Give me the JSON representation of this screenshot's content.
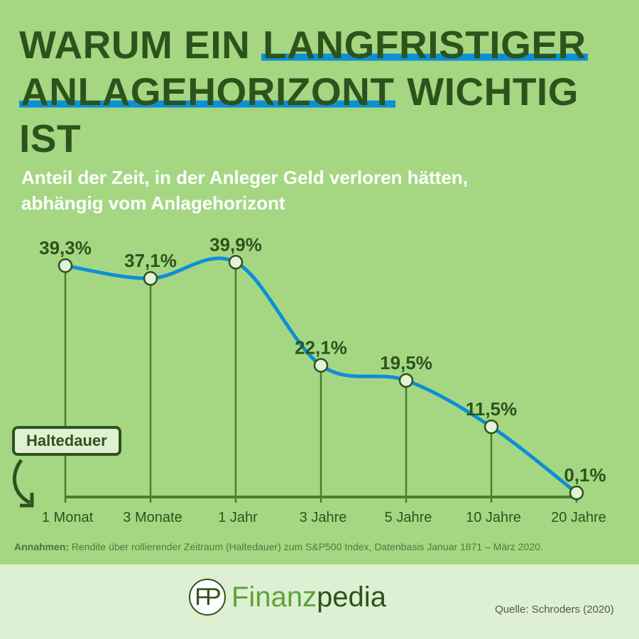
{
  "header": {
    "title_part1": "WARUM EIN ",
    "title_hl1": "LANGFRISTIGER",
    "title_hl2": "ANLAGEHORIZONT",
    "title_part2": " WICHTIG IST",
    "subtitle_line1": "Anteil der Zeit, in der Anleger Geld verloren hätten,",
    "subtitle_line2": "abhängig vom Anlagehorizont"
  },
  "chart_data": {
    "type": "line",
    "categories": [
      "1 Monat",
      "3 Monate",
      "1 Jahr",
      "3 Jahre",
      "5 Jahre",
      "10 Jahre",
      "20 Jahre"
    ],
    "values": [
      39.3,
      37.1,
      39.9,
      22.1,
      19.5,
      11.5,
      0.1
    ],
    "labels": [
      "39,3%",
      "37,1%",
      "39,9%",
      "22,1%",
      "19,5%",
      "11,5%",
      "0,1%"
    ],
    "xlabel": "Haltedauer",
    "ylim": [
      0,
      42
    ],
    "grid": false,
    "line_color": "#0d8fd6",
    "marker_color": "#e3f2d9",
    "axis_color": "#4b7d2e"
  },
  "note": {
    "bold": "Annahmen:",
    "text": " Rendite über rollierender Zeitraum (Haltedauer) zum S&P500 Index, Datenbasis Januar 1871 – März 2020."
  },
  "footer": {
    "logo_mark": "FP",
    "brand_a": "Finanz",
    "brand_b": "pedia",
    "source": "Quelle: Schroders (2020)"
  }
}
